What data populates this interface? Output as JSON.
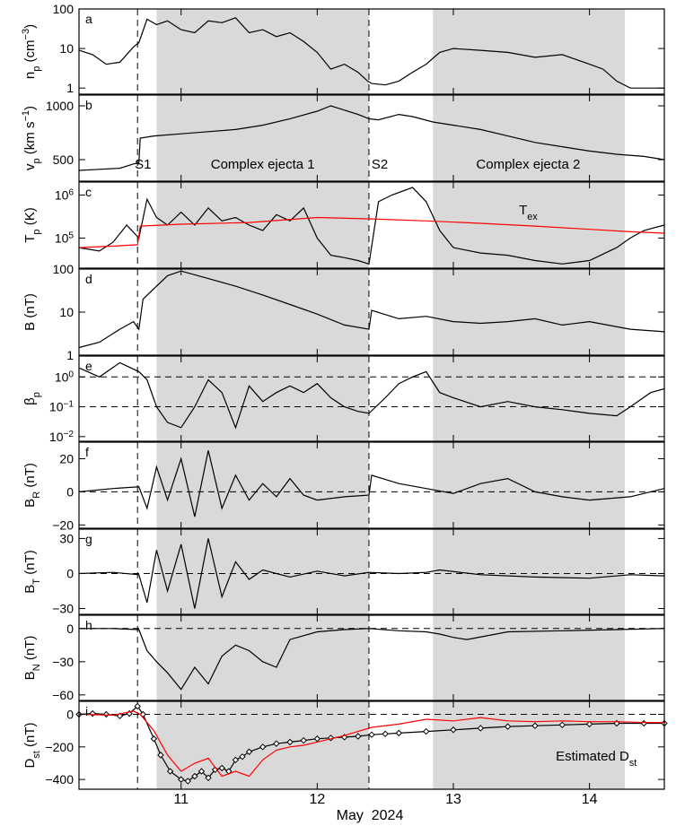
{
  "figure": {
    "xaxis": {
      "label": "May  2024",
      "range": [
        10.25,
        14.55
      ],
      "ticks": [
        {
          "v": 11,
          "label": "11"
        },
        {
          "v": 12,
          "label": "12"
        },
        {
          "v": 13,
          "label": "13"
        },
        {
          "v": 14,
          "label": "14"
        }
      ]
    },
    "shaded_intervals": [
      [
        10.82,
        12.38
      ],
      [
        12.85,
        14.26
      ]
    ],
    "shock_times": [
      10.68,
      12.38
    ],
    "colors": {
      "trace": "#000000",
      "highlight": "#ff0000",
      "shade": "#d9d9d9"
    }
  },
  "chart_data": [
    {
      "type": "line",
      "panel": "a",
      "ylabel_main": "n",
      "ylabel_sub": "p",
      "ylabel_unit": " (cm",
      "ylabel_sup": "−3",
      "ylabel_close": ")",
      "scale": "log",
      "ylim": [
        0.7,
        100
      ],
      "ticks": [
        {
          "v": 1,
          "label": "1"
        },
        {
          "v": 10,
          "label": "10"
        },
        {
          "v": 100,
          "label": "100"
        }
      ],
      "series": [
        {
          "color": "black",
          "x": [
            10.25,
            10.35,
            10.45,
            10.55,
            10.65,
            10.69,
            10.75,
            10.82,
            10.9,
            11.0,
            11.1,
            11.2,
            11.3,
            11.4,
            11.5,
            11.6,
            11.7,
            11.8,
            11.9,
            12.0,
            12.1,
            12.2,
            12.3,
            12.37,
            12.4,
            12.5,
            12.6,
            12.7,
            12.8,
            12.9,
            13.0,
            13.2,
            13.4,
            13.6,
            13.8,
            14.0,
            14.1,
            14.2,
            14.3,
            14.4,
            14.55
          ],
          "y": [
            9,
            7,
            4,
            4.5,
            11,
            14,
            55,
            40,
            50,
            30,
            25,
            50,
            45,
            60,
            25,
            30,
            20,
            25,
            15,
            8,
            3,
            4,
            2.5,
            1.5,
            1.3,
            1.2,
            1.5,
            2.5,
            4,
            8,
            10,
            9,
            8,
            6,
            7,
            4,
            3,
            1.5,
            1,
            1,
            1
          ]
        }
      ]
    },
    {
      "type": "line",
      "panel": "b",
      "ylabel_main": "v",
      "ylabel_sub": "p",
      "ylabel_unit": " (km s",
      "ylabel_sup": "−1",
      "ylabel_close": ")",
      "scale": "linear",
      "ylim": [
        300,
        1100
      ],
      "ticks": [
        {
          "v": 500,
          "label": "500"
        },
        {
          "v": 1000,
          "label": "1000"
        }
      ],
      "annotations": [
        {
          "x": 10.72,
          "text": "S1"
        },
        {
          "x": 11.6,
          "text": "Complex ejecta 1"
        },
        {
          "x": 12.46,
          "text": "S2"
        },
        {
          "x": 13.55,
          "text": "Complex ejecta 2"
        }
      ],
      "series": [
        {
          "color": "black",
          "x": [
            10.25,
            10.4,
            10.55,
            10.65,
            10.69,
            10.7,
            10.8,
            11.0,
            11.2,
            11.4,
            11.6,
            11.8,
            12.0,
            12.1,
            12.2,
            12.3,
            12.38,
            12.45,
            12.6,
            12.7,
            12.85,
            13.0,
            13.2,
            13.4,
            13.6,
            13.8,
            14.0,
            14.2,
            14.4,
            14.55
          ],
          "y": [
            400,
            410,
            420,
            460,
            470,
            700,
            720,
            740,
            760,
            780,
            820,
            880,
            950,
            1000,
            960,
            920,
            880,
            870,
            920,
            900,
            850,
            820,
            780,
            720,
            660,
            620,
            580,
            550,
            530,
            500
          ]
        }
      ]
    },
    {
      "type": "line",
      "panel": "c",
      "ylabel_main": "T",
      "ylabel_sub": "p",
      "ylabel_unit": " (K)",
      "ylabel_sup": "",
      "ylabel_close": "",
      "scale": "log",
      "ylim": [
        20000,
        2000000
      ],
      "ticks": [
        {
          "v": 100000,
          "label": "10",
          "sup": "5"
        },
        {
          "v": 1000000,
          "label": "10",
          "sup": "6"
        }
      ],
      "annotations": [
        {
          "x": 13.55,
          "text": "T",
          "sub": "ex",
          "color": "red"
        }
      ],
      "series": [
        {
          "color": "black",
          "x": [
            10.25,
            10.4,
            10.5,
            10.6,
            10.69,
            10.75,
            10.82,
            10.9,
            11.0,
            11.1,
            11.2,
            11.3,
            11.4,
            11.5,
            11.6,
            11.7,
            11.8,
            11.9,
            12.0,
            12.1,
            12.2,
            12.3,
            12.38,
            12.45,
            12.55,
            12.7,
            12.8,
            12.9,
            13.0,
            13.2,
            13.4,
            13.6,
            13.8,
            14.0,
            14.2,
            14.3,
            14.4,
            14.55
          ],
          "y": [
            60000,
            50000,
            80000,
            200000,
            100000,
            800000,
            300000,
            200000,
            400000,
            200000,
            500000,
            250000,
            300000,
            200000,
            150000,
            350000,
            250000,
            500000,
            100000,
            40000,
            35000,
            30000,
            25000,
            700000,
            1000000,
            1500000,
            700000,
            150000,
            60000,
            45000,
            40000,
            30000,
            25000,
            30000,
            60000,
            100000,
            150000,
            200000
          ]
        },
        {
          "color": "red",
          "x": [
            10.25,
            10.5,
            10.68,
            10.7,
            11.0,
            11.5,
            12.0,
            12.38,
            12.8,
            13.2,
            13.6,
            14.0,
            14.3,
            14.55
          ],
          "y": [
            60000,
            65000,
            70000,
            190000,
            210000,
            230000,
            300000,
            280000,
            250000,
            220000,
            190000,
            160000,
            140000,
            130000
          ]
        }
      ]
    },
    {
      "type": "line",
      "panel": "d",
      "ylabel_main": "B",
      "ylabel_sub": "",
      "ylabel_unit": " (nT)",
      "ylabel_sup": "",
      "ylabel_close": "",
      "scale": "log",
      "ylim": [
        1,
        100
      ],
      "ticks": [
        {
          "v": 1,
          "label": "1"
        },
        {
          "v": 10,
          "label": "10"
        },
        {
          "v": 100,
          "label": "100"
        }
      ],
      "series": [
        {
          "color": "black",
          "x": [
            10.25,
            10.4,
            10.55,
            10.65,
            10.69,
            10.72,
            10.82,
            10.9,
            11.0,
            11.2,
            11.4,
            11.6,
            11.8,
            12.0,
            12.2,
            12.38,
            12.4,
            12.6,
            12.8,
            13.0,
            13.2,
            13.4,
            13.6,
            13.8,
            14.0,
            14.3,
            14.55
          ],
          "y": [
            1.5,
            2,
            4,
            6,
            4,
            20,
            40,
            70,
            90,
            60,
            40,
            25,
            15,
            9,
            5,
            4,
            11,
            7,
            8,
            6,
            5.5,
            6,
            7,
            5,
            6,
            4,
            3.5
          ]
        }
      ]
    },
    {
      "type": "line",
      "panel": "e",
      "ylabel_main": "β",
      "ylabel_sub": "p",
      "ylabel_unit": "",
      "ylabel_sup": "",
      "ylabel_close": "",
      "scale": "log",
      "ylim": [
        0.007,
        5
      ],
      "ticks": [
        {
          "v": 0.01,
          "label": "10",
          "sup": "−2"
        },
        {
          "v": 0.1,
          "label": "10",
          "sup": "−1"
        },
        {
          "v": 1,
          "label": "10",
          "sup": "0"
        }
      ],
      "reference_lines": [
        1,
        0.1
      ],
      "series": [
        {
          "color": "black",
          "x": [
            10.25,
            10.4,
            10.55,
            10.69,
            10.75,
            10.82,
            10.9,
            11.0,
            11.1,
            11.2,
            11.3,
            11.4,
            11.5,
            11.6,
            11.7,
            11.8,
            11.9,
            12.0,
            12.1,
            12.2,
            12.3,
            12.38,
            12.5,
            12.6,
            12.7,
            12.8,
            12.9,
            13.0,
            13.2,
            13.4,
            13.6,
            13.8,
            14.0,
            14.2,
            14.3,
            14.45,
            14.55
          ],
          "y": [
            2,
            1,
            3,
            1.5,
            0.8,
            0.1,
            0.03,
            0.02,
            0.1,
            0.8,
            0.3,
            0.02,
            0.5,
            0.15,
            0.3,
            0.5,
            0.3,
            0.6,
            0.2,
            0.1,
            0.07,
            0.06,
            0.2,
            0.6,
            1,
            1.5,
            0.3,
            0.2,
            0.1,
            0.15,
            0.1,
            0.08,
            0.06,
            0.05,
            0.1,
            0.3,
            0.4
          ]
        }
      ]
    },
    {
      "type": "line",
      "panel": "f",
      "ylabel_main": "B",
      "ylabel_sub": "R",
      "ylabel_unit": " (nT)",
      "ylabel_sup": "",
      "ylabel_close": "",
      "scale": "linear",
      "ylim": [
        -22,
        30
      ],
      "ticks": [
        {
          "v": -20,
          "label": "−20"
        },
        {
          "v": 0,
          "label": "0"
        },
        {
          "v": 20,
          "label": "20"
        }
      ],
      "reference_lines": [
        0
      ],
      "series": [
        {
          "color": "black",
          "x": [
            10.25,
            10.5,
            10.69,
            10.75,
            10.82,
            10.9,
            11.0,
            11.1,
            11.2,
            11.3,
            11.4,
            11.5,
            11.6,
            11.7,
            11.8,
            11.9,
            12.0,
            12.2,
            12.38,
            12.4,
            12.6,
            12.8,
            13.0,
            13.2,
            13.4,
            13.6,
            13.8,
            14.0,
            14.3,
            14.55
          ],
          "y": [
            0,
            2,
            3,
            -10,
            15,
            -5,
            20,
            -15,
            25,
            -10,
            10,
            -5,
            5,
            -3,
            8,
            -2,
            -5,
            -3,
            -2,
            10,
            5,
            2,
            -1,
            5,
            8,
            0,
            -3,
            -5,
            -3,
            2
          ]
        }
      ]
    },
    {
      "type": "line",
      "panel": "g",
      "ylabel_main": "B",
      "ylabel_sub": "T",
      "ylabel_unit": " (nT)",
      "ylabel_sup": "",
      "ylabel_close": "",
      "scale": "linear",
      "ylim": [
        -35,
        38
      ],
      "ticks": [
        {
          "v": -30,
          "label": "−30"
        },
        {
          "v": 0,
          "label": "0"
        },
        {
          "v": 30,
          "label": "30"
        }
      ],
      "reference_lines": [
        0
      ],
      "series": [
        {
          "color": "black",
          "x": [
            10.25,
            10.5,
            10.69,
            10.75,
            10.82,
            10.9,
            11.0,
            11.1,
            11.2,
            11.3,
            11.4,
            11.5,
            11.6,
            11.8,
            12.0,
            12.2,
            12.38,
            12.6,
            12.8,
            12.9,
            13.2,
            13.6,
            14.0,
            14.3,
            14.55
          ],
          "y": [
            0,
            1,
            -1,
            -25,
            20,
            -15,
            25,
            -30,
            30,
            -20,
            10,
            -5,
            3,
            -3,
            2,
            -2,
            1,
            0,
            1,
            3,
            -1,
            -3,
            -4,
            -1,
            -2
          ]
        }
      ]
    },
    {
      "type": "line",
      "panel": "h",
      "ylabel_main": "B",
      "ylabel_sub": "N",
      "ylabel_unit": " (nT)",
      "ylabel_sup": "",
      "ylabel_close": "",
      "scale": "linear",
      "ylim": [
        -65,
        12
      ],
      "ticks": [
        {
          "v": -60,
          "label": "−60"
        },
        {
          "v": -30,
          "label": "−30"
        },
        {
          "v": 0,
          "label": "0"
        }
      ],
      "reference_lines": [
        0
      ],
      "series": [
        {
          "color": "black",
          "x": [
            10.25,
            10.5,
            10.69,
            10.75,
            10.82,
            10.9,
            11.0,
            11.1,
            11.2,
            11.3,
            11.4,
            11.5,
            11.6,
            11.7,
            11.8,
            12.0,
            12.2,
            12.38,
            12.6,
            12.8,
            12.9,
            13.0,
            13.1,
            13.4,
            13.8,
            14.2,
            14.55
          ],
          "y": [
            0,
            0,
            -1,
            -20,
            -30,
            -40,
            -55,
            -35,
            -50,
            -25,
            -15,
            -20,
            -30,
            -35,
            -10,
            -3,
            -1,
            0,
            -2,
            -3,
            -5,
            -8,
            -10,
            -3,
            -2,
            -1,
            0
          ]
        }
      ]
    },
    {
      "type": "line",
      "panel": "i",
      "ylabel_main": "D",
      "ylabel_sub": "st",
      "ylabel_unit": " (nT)",
      "ylabel_sup": "",
      "ylabel_close": "",
      "scale": "linear",
      "ylim": [
        -460,
        80
      ],
      "ticks": [
        {
          "v": -400,
          "label": "−400"
        },
        {
          "v": -200,
          "label": "−200"
        },
        {
          "v": 0,
          "label": "0"
        }
      ],
      "reference_lines": [
        0
      ],
      "annotations": [
        {
          "x": 14.05,
          "text": "Estimated D",
          "sub": "st",
          "color": "red"
        }
      ],
      "series": [
        {
          "color": "black",
          "marker": "diamond",
          "x": [
            10.25,
            10.35,
            10.45,
            10.55,
            10.62,
            10.68,
            10.72,
            10.8,
            10.85,
            10.92,
            11.0,
            11.05,
            11.1,
            11.15,
            11.2,
            11.25,
            11.3,
            11.35,
            11.4,
            11.45,
            11.5,
            11.6,
            11.7,
            11.8,
            11.9,
            12.0,
            12.1,
            12.2,
            12.3,
            12.4,
            12.5,
            12.6,
            12.8,
            13.0,
            13.2,
            13.4,
            13.6,
            13.8,
            14.0,
            14.2,
            14.4,
            14.55
          ],
          "y": [
            0,
            5,
            0,
            -10,
            5,
            50,
            0,
            -150,
            -250,
            -350,
            -400,
            -410,
            -380,
            -350,
            -390,
            -340,
            -330,
            -350,
            -280,
            -260,
            -230,
            -200,
            -180,
            -170,
            -160,
            -150,
            -145,
            -140,
            -135,
            -125,
            -120,
            -115,
            -105,
            -95,
            -85,
            -75,
            -70,
            -65,
            -60,
            -55,
            -55,
            -55
          ]
        },
        {
          "color": "red",
          "x": [
            10.25,
            10.5,
            10.65,
            10.7,
            10.8,
            10.9,
            11.0,
            11.1,
            11.2,
            11.3,
            11.4,
            11.5,
            11.6,
            11.7,
            11.8,
            11.9,
            12.0,
            12.2,
            12.4,
            12.6,
            12.8,
            13.0,
            13.2,
            13.4,
            13.6,
            13.8,
            14.0,
            14.2,
            14.4,
            14.55
          ],
          "y": [
            0,
            -5,
            20,
            0,
            -100,
            -250,
            -350,
            -300,
            -270,
            -380,
            -350,
            -380,
            -280,
            -220,
            -200,
            -190,
            -170,
            -130,
            -80,
            -60,
            -30,
            -40,
            -20,
            -40,
            -45,
            -40,
            -45,
            -45,
            -50,
            -50
          ]
        }
      ]
    }
  ]
}
